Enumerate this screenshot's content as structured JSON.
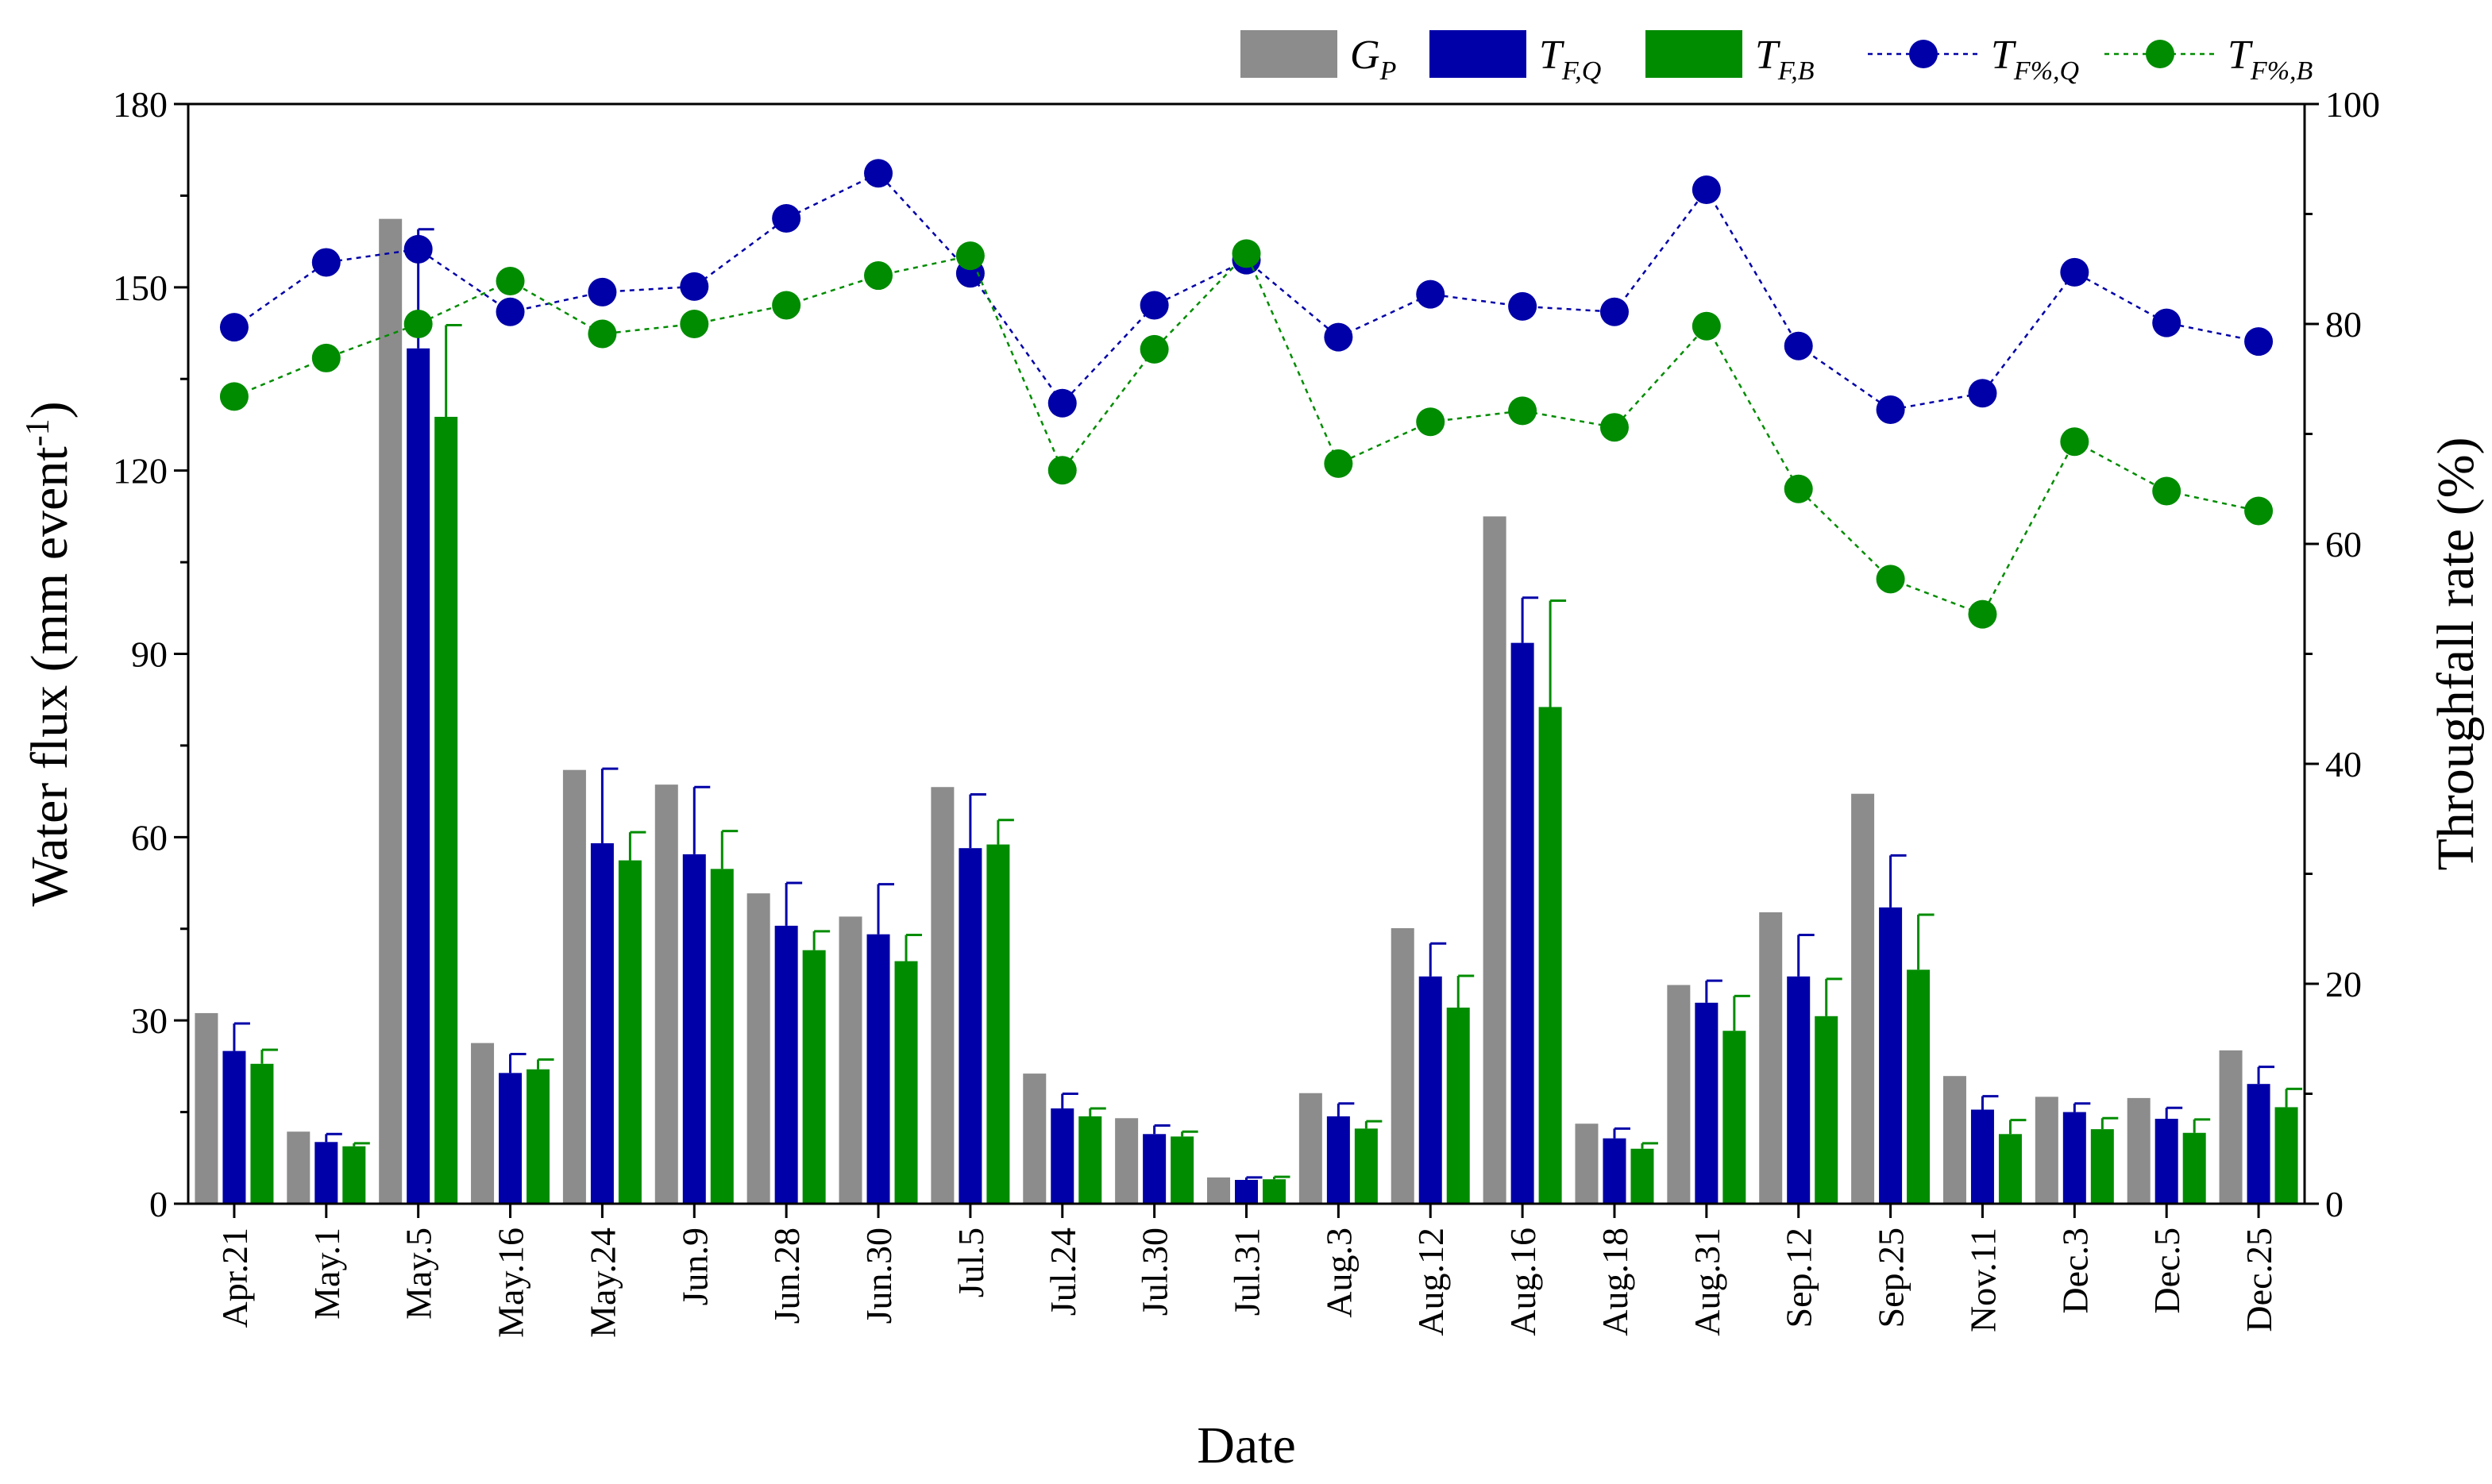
{
  "chart_data": {
    "type": "bar",
    "title": "",
    "xlabel": "Date",
    "ylabel": "Water flux (mm event",
    "ylabel_sup": "-1",
    "ylabel_end": ")",
    "y2label": "Throughfall rate (%)",
    "ylim": [
      0,
      180
    ],
    "yticks": [
      0,
      30,
      60,
      90,
      120,
      150,
      180
    ],
    "y2lim": [
      0,
      100
    ],
    "y2ticks": [
      0,
      20,
      40,
      60,
      80,
      100
    ],
    "categories": [
      "Apr.21",
      "May.1",
      "May.5",
      "May.16",
      "May.24",
      "Jun.9",
      "Jun.28",
      "Jun.30",
      "Jul.5",
      "Jul.24",
      "Jul.30",
      "Jul.31",
      "Aug.3",
      "Aug.12",
      "Aug.16",
      "Aug.18",
      "Aug.31",
      "Sep.12",
      "Sep.25",
      "Nov.11",
      "Dec.3",
      "Dec.5",
      "Dec.25"
    ],
    "bar_series": [
      {
        "name": "G",
        "sub": "P",
        "color": "#8c8c8c",
        "values": [
          31.2,
          11.8,
          161.2,
          26.3,
          71.0,
          68.6,
          50.8,
          47.0,
          68.2,
          21.3,
          14.0,
          4.3,
          18.1,
          45.1,
          112.5,
          13.1,
          35.8,
          47.7,
          67.1,
          20.9,
          17.5,
          17.3,
          25.1
        ],
        "errors": null
      },
      {
        "name": "T",
        "sub": "F,Q",
        "color": "#0000a8",
        "values": [
          25.0,
          10.1,
          140.0,
          21.4,
          59.0,
          57.2,
          45.5,
          44.1,
          58.2,
          15.6,
          11.4,
          3.9,
          14.3,
          37.2,
          91.8,
          10.7,
          32.9,
          37.2,
          48.5,
          15.4,
          15.0,
          13.9,
          19.6
        ],
        "errors": [
          4.5,
          1.3,
          19.5,
          3.1,
          12.2,
          11.0,
          7.0,
          8.2,
          8.8,
          2.4,
          1.4,
          0.4,
          2.1,
          5.4,
          7.4,
          1.6,
          3.6,
          6.8,
          8.5,
          2.2,
          1.4,
          1.8,
          2.8
        ]
      },
      {
        "name": "T",
        "sub": "F,B",
        "color": "#008c00",
        "values": [
          22.9,
          9.4,
          128.8,
          22.0,
          56.2,
          54.8,
          41.5,
          39.7,
          58.8,
          14.3,
          11.0,
          4.0,
          12.3,
          32.1,
          81.3,
          9.0,
          28.3,
          30.7,
          38.3,
          11.4,
          12.2,
          11.6,
          15.8
        ],
        "errors": [
          2.3,
          0.5,
          15.0,
          1.6,
          4.6,
          6.2,
          3.1,
          4.3,
          4.0,
          1.3,
          0.8,
          0.4,
          1.2,
          5.2,
          17.4,
          0.9,
          5.7,
          6.1,
          9.0,
          2.3,
          1.8,
          2.2,
          3.0
        ]
      }
    ],
    "line_series": [
      {
        "name": "T",
        "sub": "F%,Q",
        "color": "#0000a8",
        "values": [
          79.7,
          85.6,
          86.8,
          81.1,
          82.9,
          83.4,
          89.6,
          93.7,
          84.6,
          72.8,
          81.7,
          85.8,
          78.8,
          82.7,
          81.6,
          81.1,
          92.2,
          78.0,
          72.2,
          73.7,
          84.7,
          80.1,
          78.4
        ]
      },
      {
        "name": "T",
        "sub": "F%,B",
        "color": "#008c00",
        "values": [
          73.4,
          76.9,
          80.0,
          83.9,
          79.1,
          80.0,
          81.7,
          84.4,
          86.2,
          66.7,
          77.7,
          86.4,
          67.3,
          71.1,
          72.1,
          70.6,
          79.8,
          65.0,
          56.8,
          53.6,
          69.3,
          64.8,
          63.0
        ]
      }
    ],
    "legend_position": "top-right"
  }
}
